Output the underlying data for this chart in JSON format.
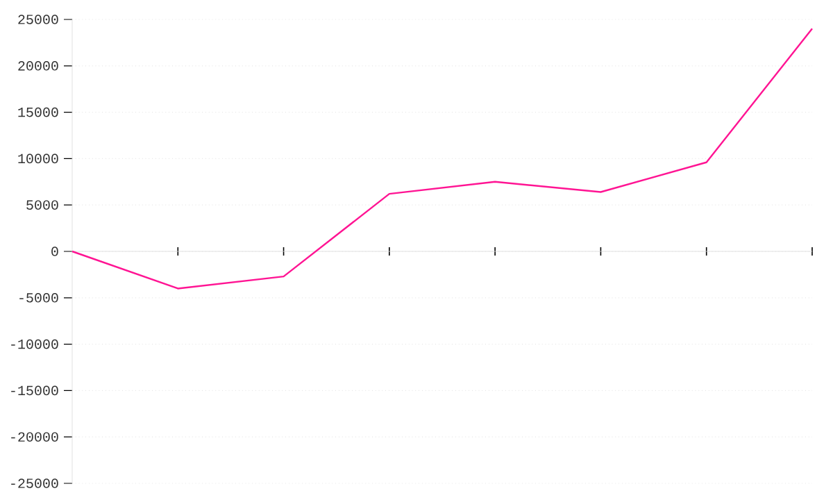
{
  "chart_data": {
    "type": "line",
    "categories": [
      null,
      null,
      null,
      null,
      null,
      null,
      null,
      null
    ],
    "series": [
      {
        "color": "#ff1493",
        "values": [
          0,
          -4000,
          -2700,
          6200,
          7500,
          6400,
          9600,
          24000
        ]
      }
    ],
    "ylim": [
      -25000,
      25000
    ],
    "yticks": [
      -25000,
      -20000,
      -15000,
      -10000,
      -5000,
      0,
      5000,
      10000,
      15000,
      20000,
      25000
    ],
    "tick_labels": "y",
    "grid": "y",
    "marker": "none",
    "line_style": "solid"
  }
}
